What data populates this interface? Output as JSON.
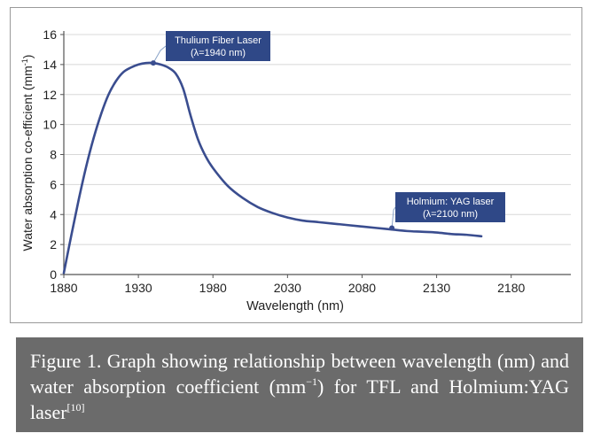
{
  "chart_data": {
    "type": "line",
    "title": "",
    "xlabel": "Wavelength (nm)",
    "ylabel_main": "Water absorption co-efficient (mm",
    "ylabel_sup": "-1",
    "ylabel_end": ")",
    "xlim": [
      1880,
      2220
    ],
    "ylim": [
      0,
      16
    ],
    "x_ticks": [
      1880,
      1930,
      1980,
      2030,
      2080,
      2130,
      2180
    ],
    "y_ticks": [
      0,
      2,
      4,
      6,
      8,
      10,
      12,
      14,
      16
    ],
    "grid": true,
    "series": [
      {
        "name": "Water absorption",
        "color": "#3a4d8f",
        "x": [
          1880,
          1885,
          1890,
          1895,
          1900,
          1905,
          1910,
          1915,
          1920,
          1925,
          1930,
          1935,
          1940,
          1945,
          1950,
          1955,
          1960,
          1965,
          1970,
          1975,
          1980,
          1990,
          2000,
          2010,
          2020,
          2030,
          2040,
          2050,
          2060,
          2070,
          2080,
          2090,
          2100,
          2110,
          2120,
          2130,
          2140,
          2150,
          2160
        ],
        "y": [
          0.1,
          2.6,
          5.0,
          7.2,
          9.1,
          10.7,
          12.0,
          12.9,
          13.5,
          13.8,
          14.0,
          14.1,
          14.1,
          14.0,
          13.8,
          13.4,
          12.4,
          10.6,
          9.0,
          7.9,
          7.1,
          5.9,
          5.1,
          4.5,
          4.1,
          3.8,
          3.6,
          3.5,
          3.4,
          3.3,
          3.2,
          3.1,
          3.0,
          2.9,
          2.85,
          2.8,
          2.7,
          2.65,
          2.55
        ]
      }
    ],
    "annotations": [
      {
        "line1": "Thulium Fiber Laser",
        "line2": "(λ=1940 nm)",
        "x": 1940,
        "y": 14.1
      },
      {
        "line1": "Holmium: YAG laser",
        "line2": "(λ=2100 nm)",
        "x": 2100,
        "y": 3.1
      }
    ]
  },
  "caption": {
    "text": "Figure 1. Graph showing relationship between wavelength (nm) and water absorption coefficient (mm",
    "sup": "−1",
    "text2": ") for TFL and Holmium:YAG laser",
    "ref": "[10]"
  }
}
